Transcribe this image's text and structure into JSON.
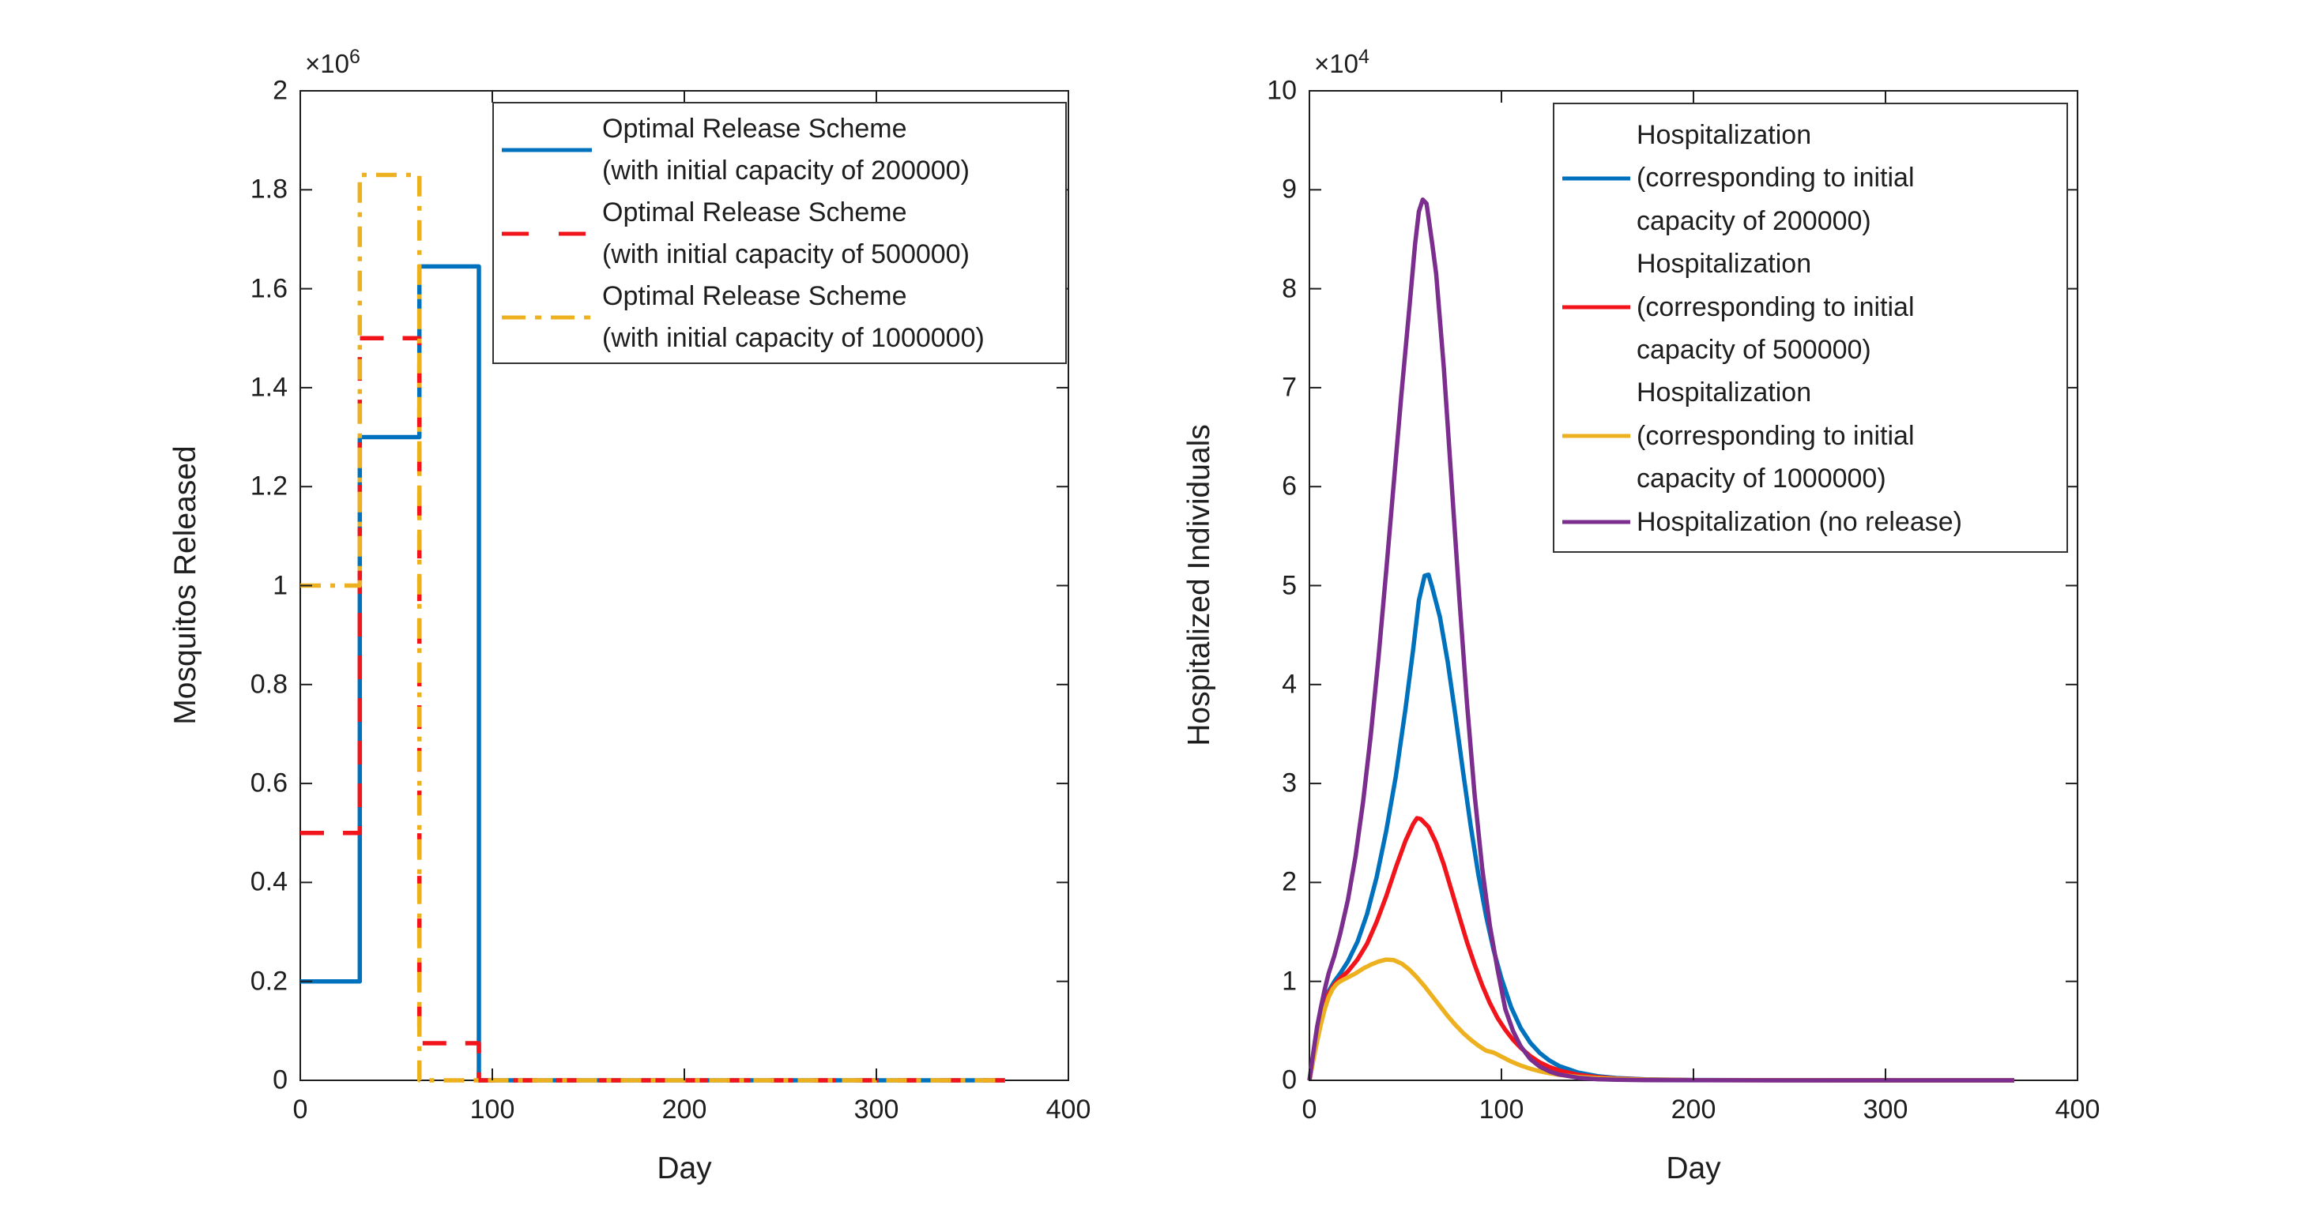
{
  "figure": {
    "background": "#ffffff",
    "axis_color": "#1e1e1e"
  },
  "chart_data": [
    {
      "type": "line",
      "subtype": "step",
      "xlabel": "Day",
      "ylabel": "Mosquitos Released",
      "xlim": [
        0,
        400
      ],
      "ylim": [
        0,
        2000000
      ],
      "x_ticks": [
        0,
        100,
        200,
        300,
        400
      ],
      "x_tick_labels": [
        "0",
        "100",
        "200",
        "300",
        "400"
      ],
      "y_ticks": [
        0,
        200000,
        400000,
        600000,
        800000,
        1000000,
        1200000,
        1400000,
        1600000,
        1800000,
        2000000
      ],
      "y_tick_labels": [
        "0",
        "0.2",
        "0.4",
        "0.6",
        "0.8",
        "1",
        "1.2",
        "1.4",
        "1.6",
        "1.8",
        "2"
      ],
      "y_exponent": {
        "base": "×10",
        "power": "6"
      },
      "grid": false,
      "legend_position": "upper right inside",
      "series": [
        {
          "name": "Optimal Release Scheme (with initial capacity of 200000)",
          "label_lines": [
            "Optimal Release Scheme",
            "(with initial capacity of 200000)"
          ],
          "color": "#0072BD",
          "style": "solid",
          "points": [
            [
              0,
              200000
            ],
            [
              31,
              200000
            ],
            [
              31,
              1300000
            ],
            [
              62,
              1300000
            ],
            [
              62,
              1645000
            ],
            [
              93,
              1645000
            ],
            [
              93,
              0
            ],
            [
              367,
              0
            ]
          ]
        },
        {
          "name": "Optimal Release Scheme (with initial capacity of 500000)",
          "label_lines": [
            "Optimal Release Scheme",
            "(with initial capacity of 500000)"
          ],
          "color": "#F1141B",
          "style": "dashed",
          "points": [
            [
              0,
              500000
            ],
            [
              31,
              500000
            ],
            [
              31,
              1500000
            ],
            [
              62,
              1500000
            ],
            [
              62,
              75000
            ],
            [
              93,
              75000
            ],
            [
              93,
              0
            ],
            [
              367,
              0
            ]
          ]
        },
        {
          "name": "Optimal Release Scheme (with initial capacity of 1000000)",
          "label_lines": [
            "Optimal Release Scheme",
            "(with initial capacity of 1000000)"
          ],
          "color": "#EDB120",
          "style": "dashdot",
          "points": [
            [
              0,
              1000000
            ],
            [
              31,
              1000000
            ],
            [
              31,
              1830000
            ],
            [
              62,
              1830000
            ],
            [
              62,
              0
            ],
            [
              367,
              0
            ]
          ]
        }
      ]
    },
    {
      "type": "line",
      "subtype": "smooth",
      "xlabel": "Day",
      "ylabel": "Hospitalized Individuals",
      "xlim": [
        0,
        400
      ],
      "ylim": [
        0,
        100000
      ],
      "x_ticks": [
        0,
        100,
        200,
        300,
        400
      ],
      "x_tick_labels": [
        "0",
        "100",
        "200",
        "300",
        "400"
      ],
      "y_ticks": [
        0,
        10000,
        20000,
        30000,
        40000,
        50000,
        60000,
        70000,
        80000,
        90000,
        100000
      ],
      "y_tick_labels": [
        "0",
        "1",
        "2",
        "3",
        "4",
        "5",
        "6",
        "7",
        "8",
        "9",
        "10"
      ],
      "y_exponent": {
        "base": "×10",
        "power": "4"
      },
      "grid": false,
      "legend_position": "upper right inside",
      "series": [
        {
          "name": "Hospitalization (corresponding to initial capacity of 200000)",
          "label_lines": [
            "Hospitalization",
            "(corresponding to initial",
            "capacity of 200000)"
          ],
          "color": "#0072BD",
          "style": "solid",
          "peak": {
            "day": 60,
            "value": 51000
          },
          "points": [
            [
              0,
              0
            ],
            [
              2,
              2200
            ],
            [
              4,
              4400
            ],
            [
              6,
              6300
            ],
            [
              8,
              7800
            ],
            [
              10,
              9000
            ],
            [
              13,
              10000
            ],
            [
              16,
              10800
            ],
            [
              20,
              12000
            ],
            [
              25,
              14000
            ],
            [
              30,
              16800
            ],
            [
              35,
              20500
            ],
            [
              40,
              25200
            ],
            [
              45,
              30700
            ],
            [
              50,
              37500
            ],
            [
              54,
              43500
            ],
            [
              57,
              48500
            ],
            [
              60,
              51000
            ],
            [
              62,
              51100
            ],
            [
              64,
              49800
            ],
            [
              68,
              46800
            ],
            [
              72,
              42300
            ],
            [
              76,
              36900
            ],
            [
              80,
              31200
            ],
            [
              84,
              25700
            ],
            [
              88,
              20800
            ],
            [
              92,
              16600
            ],
            [
              96,
              13100
            ],
            [
              100,
              10300
            ],
            [
              105,
              7400
            ],
            [
              110,
              5300
            ],
            [
              115,
              3800
            ],
            [
              120,
              2750
            ],
            [
              125,
              2000
            ],
            [
              130,
              1450
            ],
            [
              140,
              780
            ],
            [
              150,
              420
            ],
            [
              160,
              230
            ],
            [
              175,
              95
            ],
            [
              200,
              28
            ],
            [
              250,
              6
            ],
            [
              300,
              2
            ],
            [
              367,
              0
            ]
          ]
        },
        {
          "name": "Hospitalization (corresponding to initial capacity of 500000)",
          "label_lines": [
            "Hospitalization",
            "(corresponding to initial",
            "capacity of 500000)"
          ],
          "color": "#F1141B",
          "style": "solid",
          "peak": {
            "day": 56,
            "value": 26500
          },
          "points": [
            [
              0,
              0
            ],
            [
              2,
              2100
            ],
            [
              4,
              4200
            ],
            [
              6,
              6100
            ],
            [
              8,
              7600
            ],
            [
              10,
              8800
            ],
            [
              13,
              9700
            ],
            [
              16,
              10300
            ],
            [
              20,
              11000
            ],
            [
              25,
              12200
            ],
            [
              30,
              13800
            ],
            [
              35,
              16000
            ],
            [
              40,
              18600
            ],
            [
              45,
              21500
            ],
            [
              50,
              24200
            ],
            [
              54,
              25900
            ],
            [
              56,
              26500
            ],
            [
              58,
              26400
            ],
            [
              62,
              25600
            ],
            [
              66,
              24000
            ],
            [
              70,
              21800
            ],
            [
              74,
              19200
            ],
            [
              78,
              16600
            ],
            [
              82,
              14000
            ],
            [
              86,
              11700
            ],
            [
              90,
              9600
            ],
            [
              94,
              7800
            ],
            [
              98,
              6300
            ],
            [
              102,
              5100
            ],
            [
              106,
              4100
            ],
            [
              110,
              3300
            ],
            [
              115,
              2450
            ],
            [
              120,
              1800
            ],
            [
              125,
              1350
            ],
            [
              130,
              1000
            ],
            [
              140,
              560
            ],
            [
              150,
              320
            ],
            [
              160,
              180
            ],
            [
              175,
              80
            ],
            [
              200,
              25
            ],
            [
              250,
              6
            ],
            [
              300,
              2
            ],
            [
              367,
              0
            ]
          ]
        },
        {
          "name": "Hospitalization (corresponding to initial capacity of 1000000)",
          "label_lines": [
            "Hospitalization",
            "(corresponding to initial",
            "capacity of 1000000)"
          ],
          "color": "#EDB120",
          "style": "solid",
          "peak": {
            "day": 40,
            "value": 12200
          },
          "points": [
            [
              0,
              0
            ],
            [
              2,
              2000
            ],
            [
              4,
              3900
            ],
            [
              6,
              5700
            ],
            [
              8,
              7200
            ],
            [
              10,
              8400
            ],
            [
              12,
              9200
            ],
            [
              14,
              9700
            ],
            [
              16,
              10000
            ],
            [
              18,
              10200
            ],
            [
              20,
              10400
            ],
            [
              24,
              10800
            ],
            [
              28,
              11300
            ],
            [
              32,
              11700
            ],
            [
              36,
              12000
            ],
            [
              40,
              12200
            ],
            [
              44,
              12150
            ],
            [
              48,
              11800
            ],
            [
              52,
              11200
            ],
            [
              56,
              10400
            ],
            [
              60,
              9500
            ],
            [
              64,
              8500
            ],
            [
              68,
              7500
            ],
            [
              72,
              6500
            ],
            [
              76,
              5600
            ],
            [
              80,
              4800
            ],
            [
              84,
              4100
            ],
            [
              88,
              3500
            ],
            [
              92,
              3000
            ],
            [
              96,
              2800
            ],
            [
              100,
              2400
            ],
            [
              105,
              1900
            ],
            [
              110,
              1500
            ],
            [
              115,
              1170
            ],
            [
              120,
              920
            ],
            [
              125,
              720
            ],
            [
              130,
              560
            ],
            [
              140,
              350
            ],
            [
              150,
              220
            ],
            [
              160,
              135
            ],
            [
              175,
              65
            ],
            [
              200,
              22
            ],
            [
              250,
              5
            ],
            [
              300,
              1
            ],
            [
              367,
              0
            ]
          ]
        },
        {
          "name": "Hospitalization (no release)",
          "label_lines": [
            "Hospitalization (no release)"
          ],
          "color": "#7B2E8E",
          "style": "solid",
          "peak": {
            "day": 59,
            "value": 89000
          },
          "points": [
            [
              0,
              0
            ],
            [
              2,
              2800
            ],
            [
              4,
              5400
            ],
            [
              6,
              7400
            ],
            [
              8,
              9200
            ],
            [
              10,
              10800
            ],
            [
              13,
              12600
            ],
            [
              16,
              14800
            ],
            [
              20,
              18200
            ],
            [
              24,
              22600
            ],
            [
              28,
              28200
            ],
            [
              32,
              35000
            ],
            [
              36,
              42800
            ],
            [
              40,
              51500
            ],
            [
              44,
              60500
            ],
            [
              48,
              69500
            ],
            [
              52,
              78000
            ],
            [
              55,
              84500
            ],
            [
              57,
              87800
            ],
            [
              59,
              89000
            ],
            [
              61,
              88600
            ],
            [
              64,
              84500
            ],
            [
              66,
              81500
            ],
            [
              70,
              72000
            ],
            [
              74,
              60500
            ],
            [
              78,
              49000
            ],
            [
              82,
              38200
            ],
            [
              86,
              28900
            ],
            [
              90,
              21400
            ],
            [
              94,
              15600
            ],
            [
              98,
              11200
            ],
            [
              102,
              7200
            ],
            [
              106,
              5000
            ],
            [
              110,
              3450
            ],
            [
              115,
              2150
            ],
            [
              120,
              1380
            ],
            [
              125,
              900
            ],
            [
              130,
              590
            ],
            [
              140,
              260
            ],
            [
              150,
              115
            ],
            [
              160,
              55
            ],
            [
              175,
              20
            ],
            [
              200,
              7
            ],
            [
              250,
              2
            ],
            [
              300,
              1
            ],
            [
              367,
              0
            ]
          ]
        }
      ]
    }
  ]
}
